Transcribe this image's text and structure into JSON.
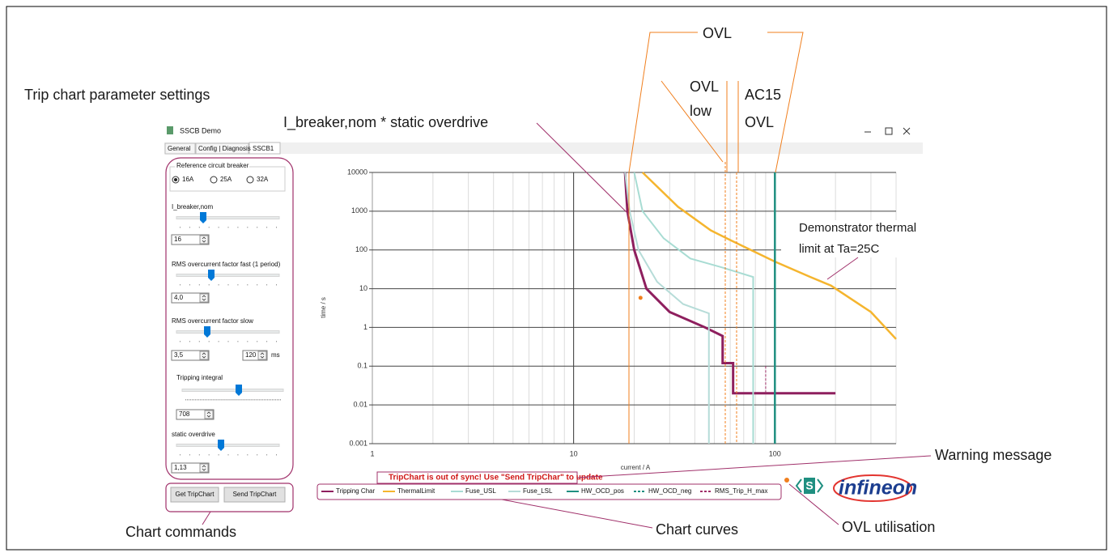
{
  "annotations": {
    "settings": "Trip chart parameter settings",
    "overdrive": "I_breaker,nom * static overdrive",
    "ovl": "OVL",
    "ovl_low": [
      "OVL",
      "low"
    ],
    "ac15": [
      "AC15",
      "OVL"
    ],
    "thermal": [
      "Demonstrator thermal",
      "limit at Ta=25C"
    ],
    "warning": "Warning message",
    "commands": "Chart commands",
    "curves": "Chart curves",
    "utilisation": "OVL utilisation"
  },
  "window": {
    "title": "SSCB Demo",
    "tabs": [
      "General",
      "Config | Diagnosis",
      "SSCB1"
    ]
  },
  "settings": {
    "group": "Reference circuit breaker",
    "radios": [
      "16A",
      "25A",
      "32A"
    ],
    "controls": [
      {
        "label": "I_breaker,nom",
        "value": "16"
      },
      {
        "label": "RMS overcurrent factor fast (1 period)",
        "value": "4,0"
      },
      {
        "label": "RMS overcurrent factor slow",
        "value": "3,5"
      },
      {
        "label": "Tripping integral",
        "value": "708"
      },
      {
        "label": "static overdrive",
        "value": "1,13"
      }
    ],
    "slow_time": "120",
    "slow_unit": "ms"
  },
  "buttons": [
    "Get TripChart",
    "Send TripChart"
  ],
  "warning": "TripChart is out of sync! Use \"Send TripChar\" to update",
  "logo": "infineon",
  "chart": {
    "type": "line",
    "xlabel": "current / A",
    "ylabel": "time / s",
    "xlog": true,
    "ylog": true,
    "grid": true,
    "xlim": [
      1,
      400
    ],
    "ylim": [
      0.001,
      10000
    ],
    "xticks": [
      1,
      10,
      100
    ],
    "xminorticks": [
      2,
      3,
      4,
      5,
      6,
      7,
      8,
      9,
      20,
      30,
      40,
      50,
      60,
      70,
      80,
      90,
      200,
      300,
      400
    ],
    "yticks": [
      0.001,
      0.01,
      0.1,
      1,
      10,
      100,
      1000,
      10000
    ],
    "series": [
      {
        "name": "Tripping Char",
        "color": "#8e1f5e",
        "x": [
          18,
          18.5,
          20,
          23,
          30,
          45,
          55,
          55,
          62,
          62,
          200
        ],
        "values": [
          10000,
          1000,
          100,
          10,
          2.5,
          1,
          0.6,
          0.12,
          0.12,
          0.02,
          0.02
        ]
      },
      {
        "name": "ThermalLimit",
        "color": "#f5b52e",
        "x": [
          22,
          33,
          48,
          60,
          100,
          150,
          190,
          300,
          400
        ],
        "values": [
          10000,
          1300,
          320,
          180,
          50,
          20,
          12,
          2.5,
          0.5
        ]
      },
      {
        "name": "Fuse_USL",
        "color": "#a8dcd3",
        "x": [
          20,
          22,
          28,
          38,
          55,
          78,
          78
        ],
        "values": [
          10000,
          1000,
          200,
          60,
          35,
          20,
          0.001
        ]
      },
      {
        "name": "Fuse_LSL",
        "color": "#b6dcd8",
        "x": [
          18,
          19,
          21,
          26,
          35,
          47,
          47
        ],
        "values": [
          10000,
          1000,
          100,
          15,
          4,
          2.3,
          0.001
        ]
      },
      {
        "name": "HW_OCD_pos",
        "color": "#1f8f80",
        "x": [
          100,
          100
        ],
        "values": [
          10000,
          0.001
        ]
      },
      {
        "name": "HW_OCD_neg",
        "color": "#1f8f80",
        "dash": true,
        "x": [
          100,
          100
        ],
        "values": [
          10000,
          0.001
        ]
      },
      {
        "name": "RMS_Trip_H_max",
        "color": "#a0306a",
        "dash": true,
        "x": [
          90,
          90
        ],
        "values": [
          0.1,
          0.02
        ]
      }
    ],
    "point": {
      "x": 21.5,
      "y": 5.8,
      "color": "#f07f1e"
    }
  }
}
